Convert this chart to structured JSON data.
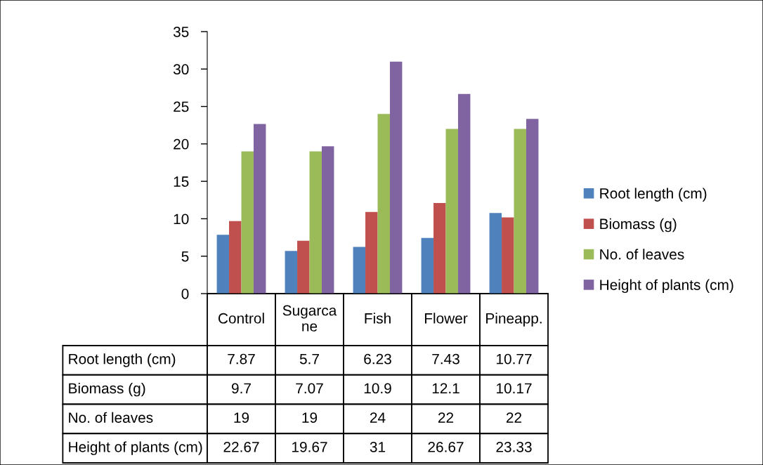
{
  "chart_data": {
    "type": "bar",
    "categories": [
      "Control",
      "Sugarcane",
      "Fish",
      "Flower",
      "Pineapp."
    ],
    "series": [
      {
        "name": "Root length (cm)",
        "color": "#4f81bd",
        "values": [
          7.87,
          5.7,
          6.23,
          7.43,
          10.77
        ]
      },
      {
        "name": "Biomass (g)",
        "color": "#c0504d",
        "values": [
          9.7,
          7.07,
          10.9,
          12.1,
          10.17
        ]
      },
      {
        "name": "No. of leaves",
        "color": "#9bbb59",
        "values": [
          19,
          19,
          24,
          22,
          22
        ]
      },
      {
        "name": "Height of plants (cm)",
        "color": "#8064a2",
        "values": [
          22.67,
          19.67,
          31,
          26.67,
          23.33
        ]
      }
    ],
    "ylim": [
      0,
      35
    ],
    "yticks": [
      0,
      5,
      10,
      15,
      20,
      25,
      30,
      35
    ],
    "legend": "right",
    "data_labels": true
  }
}
